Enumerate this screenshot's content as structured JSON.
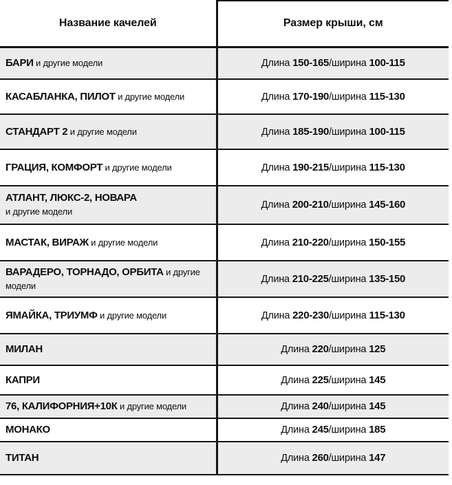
{
  "colors": {
    "row_alt_background": "#ececec",
    "border": "#151515",
    "text": "#0e0e0e"
  },
  "header": {
    "col1": "Название качелей",
    "col2": "Размер крыши, см"
  },
  "labels": {
    "length": "Длина ",
    "slash_width": "/ширина "
  },
  "rows": [
    {
      "models": "БАРИ",
      "suffix": " и другие модели",
      "length": "150-165",
      "width": "100-115"
    },
    {
      "models": "КАСАБЛАНКА, ПИЛОТ",
      "suffix": " и другие модели",
      "length": "170-190",
      "width": "115-130"
    },
    {
      "models": "СТАНДАРТ 2",
      "suffix": " и другие модели",
      "length": "185-190",
      "width": "100-115"
    },
    {
      "models": "ГРАЦИЯ, КОМФОРТ",
      "suffix": " и другие модели",
      "length": "190-215",
      "width": "115-130"
    },
    {
      "models": "АТЛАНТ, ЛЮКС-2, НОВАРА",
      "suffix": "\nи другие модели",
      "length": "200-210",
      "width": "145-160"
    },
    {
      "models": "МАСТАК, ВИРАЖ",
      "suffix": " и другие модели",
      "length": "210-220",
      "width": "150-155"
    },
    {
      "models": "ВАРАДЕРО, ТОРНАДО, ОРБИТА",
      "suffix": " и другие модели",
      "length": "210-225",
      "width": "135-150"
    },
    {
      "models": "ЯМАЙКА, ТРИУМФ",
      "suffix": " и другие модели",
      "length": "220-230",
      "width": "115-130"
    },
    {
      "models": "МИЛАН",
      "suffix": "",
      "length": "220",
      "width": "125"
    },
    {
      "models": "КАПРИ",
      "suffix": "",
      "length": "225",
      "width": "145"
    },
    {
      "models": "76, КАЛИФОРНИЯ+10К",
      "suffix": " и другие модели",
      "length": "240",
      "width": "145"
    },
    {
      "models": "МОНАКО",
      "suffix": "",
      "length": "245",
      "width": "185"
    },
    {
      "models": "ТИТАН",
      "suffix": "",
      "length": "260",
      "width": "147"
    }
  ]
}
